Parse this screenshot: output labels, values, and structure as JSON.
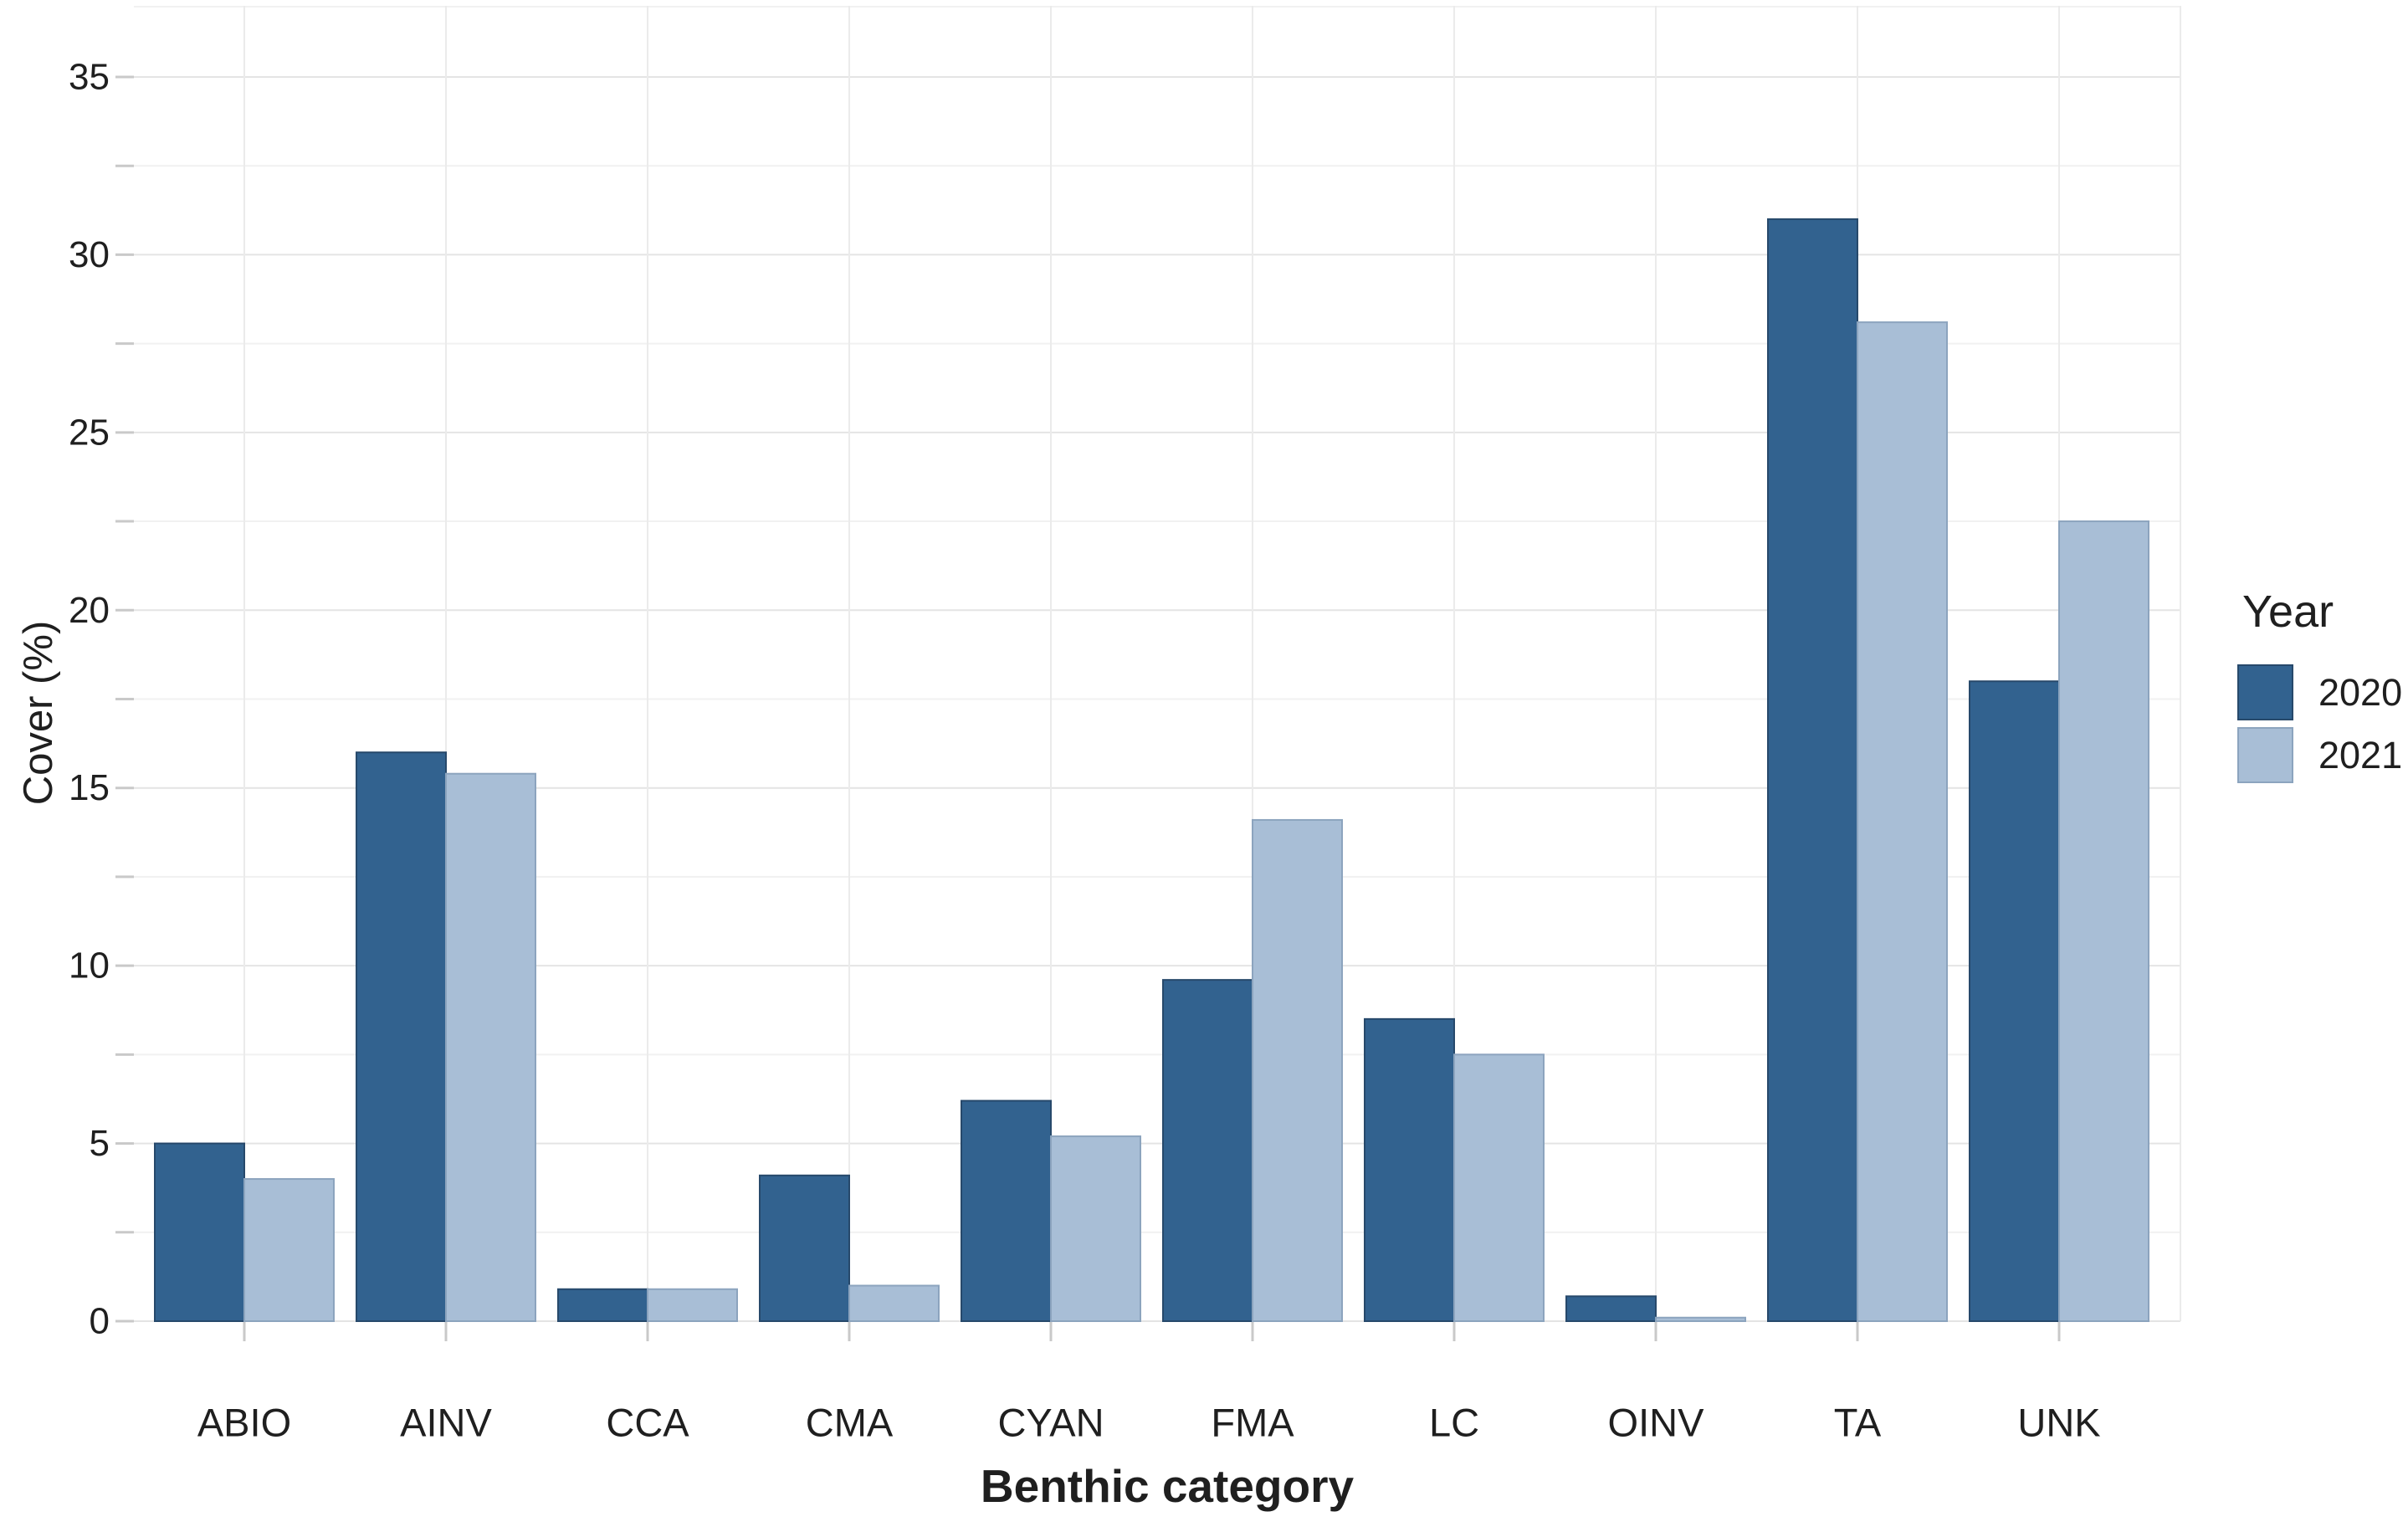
{
  "chart_data": {
    "type": "bar",
    "title": "",
    "xlabel": "Benthic category",
    "ylabel": "Cover (%)",
    "categories": [
      "ABIO",
      "AINV",
      "CCA",
      "CMA",
      "CYAN",
      "FMA",
      "LC",
      "OINV",
      "TA",
      "UNK"
    ],
    "series": [
      {
        "name": "2020",
        "color": "#32628F",
        "edge_color": "#27496B",
        "values": [
          5.0,
          16.0,
          0.9,
          4.1,
          6.2,
          9.6,
          8.5,
          0.7,
          31.0,
          18.0
        ]
      },
      {
        "name": "2021",
        "color": "#A8BED6",
        "edge_color": "#8CA4BE",
        "values": [
          4.0,
          15.4,
          0.9,
          1.0,
          5.2,
          14.1,
          7.5,
          0.1,
          28.1,
          22.5
        ]
      }
    ],
    "ylim": [
      0,
      37
    ],
    "yticks": [
      0,
      5,
      10,
      15,
      20,
      25,
      30,
      35
    ],
    "ytick_labels": [
      "0",
      "5",
      "10",
      "15",
      "20",
      "25",
      "30",
      "35"
    ],
    "yminor": [
      2.5,
      7.5,
      12.5,
      17.5,
      22.5,
      27.5,
      32.5
    ],
    "grid": true,
    "legend_title": "Year",
    "legend_position": "right-center"
  },
  "colors": {
    "background": "#FFFFFF",
    "grid_major": "#E4E4E4",
    "grid_minor": "#F1F1F1",
    "grid_vertical": "#EBEBEB",
    "tick": "#C9C9C9",
    "text": "#1F1F1F"
  }
}
